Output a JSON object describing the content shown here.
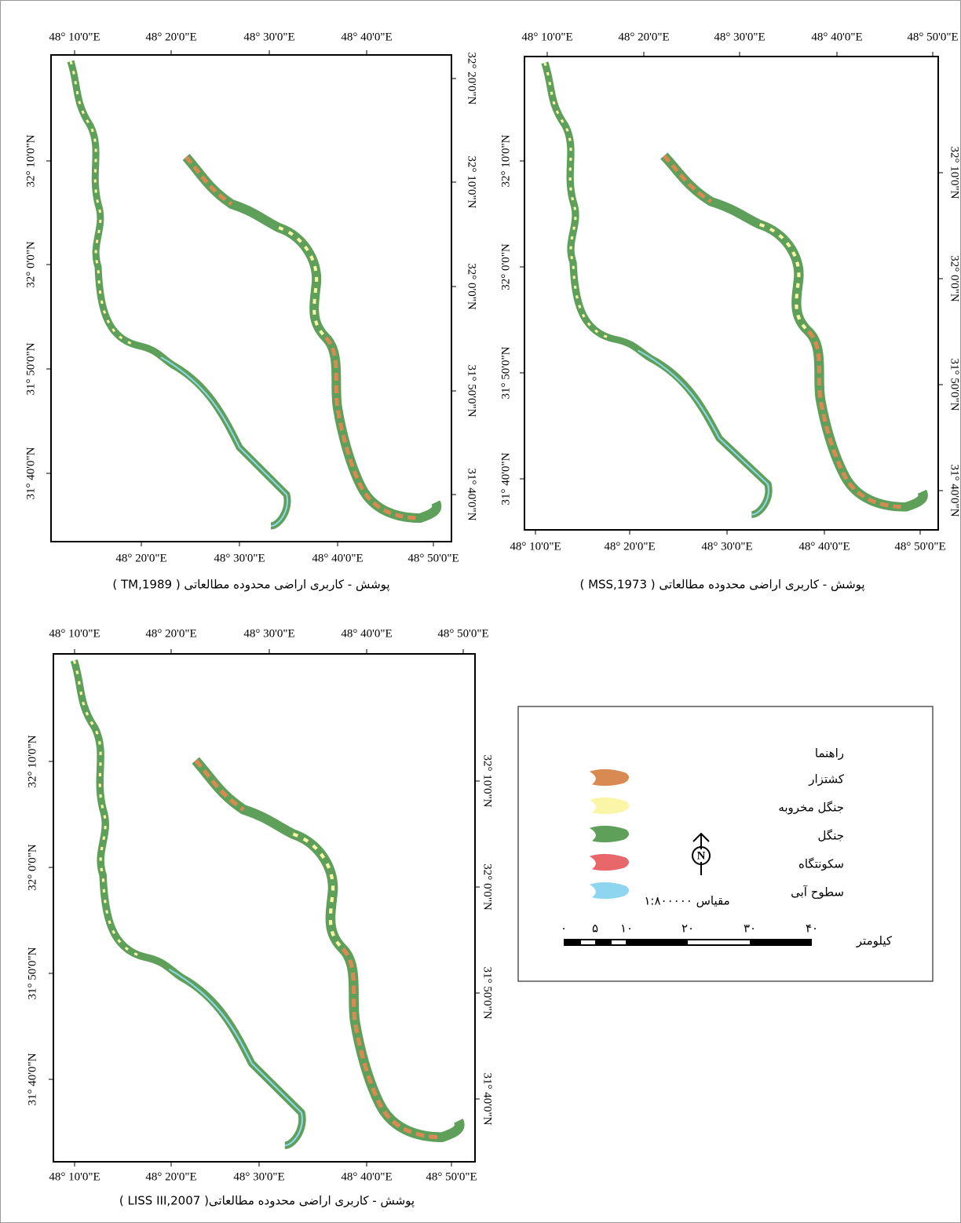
{
  "panels": [
    {
      "caption": "پوشش - کاربری اراضی محدوده مطالعاتی ( TM,1989 )",
      "top_labels": [
        "48° 10'0\"E",
        "48° 20'0\"E",
        "48° 30'0\"E",
        "48° 40'0\"E"
      ],
      "bottom_labels": [
        "48° 20'0\"E",
        "48° 30'0\"E",
        "48° 40'0\"E",
        "48° 50'0\"E"
      ],
      "left_labels": [
        "32° 10'0\"N",
        "32° 0'0\"N",
        "31° 50'0\"N",
        "31° 40'0\"N"
      ],
      "right_labels": [
        "32° 20'0\"N",
        "32° 10'0\"N",
        "32° 0'0\"N",
        "31° 50'0\"N",
        "31° 40'0\"N"
      ]
    },
    {
      "caption": "پوشش - کاربری اراضی محدوده مطالعاتی ( MSS,1973 )",
      "top_labels": [
        "48° 10'0\"E",
        "48° 20'0\"E",
        "48° 30'0\"E",
        "48° 40'0\"E",
        "48° 50'0\"E"
      ],
      "bottom_labels": [
        "48° 10'0\"E",
        "48° 20'0\"E",
        "48° 30'0\"E",
        "48° 40'0\"E",
        "48° 50'0\"E"
      ],
      "left_labels": [
        "32° 10'0\"N",
        "32° 0'0\"N",
        "31° 50'0\"N",
        "31° 40'0\"N"
      ],
      "right_labels": [
        "32° 10'0\"N",
        "32° 0'0\"N",
        "31° 50'0\"N",
        "31° 40'0\"N"
      ]
    },
    {
      "caption": "پوشش - کاربری اراضی محدوده مطالعاتی( LISS III,2007 )",
      "top_labels": [
        "48° 10'0\"E",
        "48° 20'0\"E",
        "48° 30'0\"E",
        "48° 40'0\"E",
        "48° 50'0\"E"
      ],
      "bottom_labels": [
        "48° 10'0\"E",
        "48° 20'0\"E",
        "48° 30'0\"E",
        "48° 40'0\"E",
        "48° 50'0\"E"
      ],
      "left_labels": [
        "32° 10'0\"N",
        "32° 0'0\"N",
        "31° 50'0\"N",
        "31° 40'0\"N"
      ],
      "right_labels": [
        "32° 10'0\"N",
        "32° 0'0\"N",
        "31° 50'0\"N",
        "31° 40'0\"N"
      ]
    }
  ],
  "legend": {
    "title": "راهنما",
    "items": [
      {
        "name": "کشتزار",
        "color": "#d98a52"
      },
      {
        "name": "جنگل مخروبه",
        "color": "#fbf5a8"
      },
      {
        "name": "جنگل",
        "color": "#5ea05a"
      },
      {
        "name": "سکونتگاه",
        "color": "#e8676b"
      },
      {
        "name": "سطوح آبی",
        "color": "#8ed6ef"
      }
    ],
    "north": "N",
    "scale": "مقیاس ۱:۸۰۰۰۰۰",
    "scale_ticks": [
      "۰",
      "۵",
      "۱۰",
      "۲۰",
      "۳۰",
      "۴۰"
    ],
    "scale_unit": "کیلومتر"
  }
}
